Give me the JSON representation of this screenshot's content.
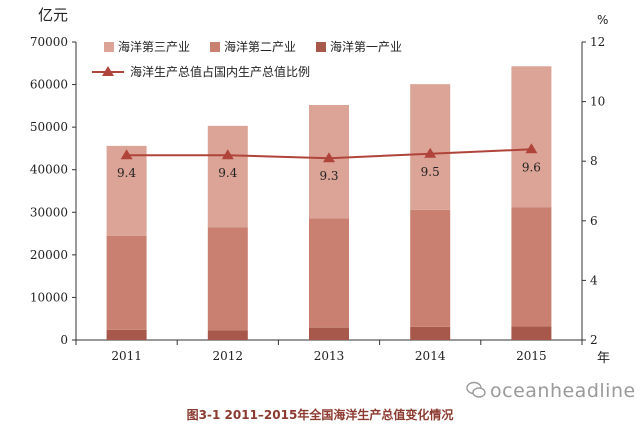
{
  "chart_data": {
    "type": "bar",
    "stacked": true,
    "categories": [
      "2011",
      "2012",
      "2013",
      "2014",
      "2015"
    ],
    "series": [
      {
        "name": "海洋第一产业",
        "values": [
          2400,
          2300,
          2900,
          3100,
          3200
        ],
        "color": "#a8584b"
      },
      {
        "name": "海洋第二产业",
        "values": [
          22100,
          24200,
          25700,
          27500,
          28000
        ],
        "color": "#c98070"
      },
      {
        "name": "海洋第三产业",
        "values": [
          21100,
          23800,
          26600,
          29500,
          33100
        ],
        "color": "#dca497"
      }
    ],
    "line_series": {
      "name": "海洋生产总值占国内生产总值比例",
      "values": [
        9.4,
        9.4,
        9.3,
        9.5,
        9.6
      ],
      "plot_values": [
        8.2,
        8.2,
        8.1,
        8.25,
        8.4
      ],
      "labels": [
        "9.4",
        "9.4",
        "9.3",
        "9.5",
        "9.6"
      ],
      "color": "#b0443a"
    },
    "y_left": {
      "unit": "亿元",
      "ticks": [
        0,
        10000,
        20000,
        30000,
        40000,
        50000,
        60000,
        70000
      ],
      "range": [
        0,
        70000
      ]
    },
    "y_right": {
      "unit": "%",
      "ticks": [
        2,
        4,
        6,
        8,
        10,
        12
      ],
      "range": [
        2,
        12
      ]
    },
    "x_unit": "年",
    "legend_position": "top"
  },
  "caption": "图3-1   2011–2015年全国海洋生产总值变化情况",
  "watermark": "oceanheadline"
}
